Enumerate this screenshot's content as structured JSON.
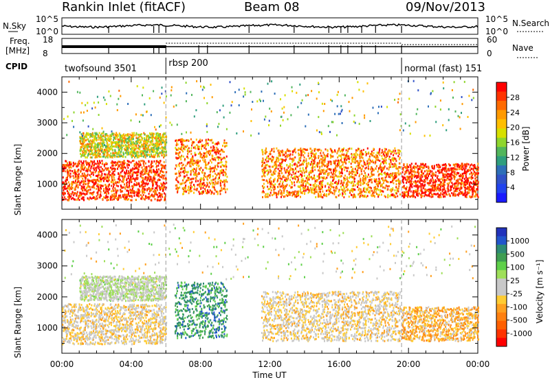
{
  "header": {
    "station": "Rankin Inlet (fitACF)",
    "beam": "Beam 08",
    "date": "09/Nov/2013"
  },
  "noise_panel": {
    "left_label": "N.Sky",
    "right_label": "N.Search",
    "left_top": "10^5",
    "left_bottom": "10^0",
    "right_top": "10^5",
    "right_bottom": "10^0"
  },
  "freq_panel": {
    "left_label_1": "Freq.",
    "left_label_2": "[MHz]",
    "left_top": "18",
    "left_bottom": "8",
    "right_label": "Nave",
    "right_top": "60",
    "right_bottom": "0"
  },
  "cpid_panel": {
    "label": "CPID",
    "segments": [
      {
        "text": "twofsound 3501",
        "start_hour": 0,
        "end_hour": 6.0
      },
      {
        "text": "rbsp 200",
        "start_hour": 6.0,
        "end_hour": 19.6
      },
      {
        "text": "normal (fast) 151",
        "start_hour": 19.6,
        "end_hour": 24
      }
    ]
  },
  "axes": {
    "y_label": "Slant Range [km]",
    "x_label": "Time UT",
    "x_ticks": [
      "00:00",
      "04:00",
      "08:00",
      "12:00",
      "16:00",
      "20:00",
      "00:00"
    ],
    "y_ticks": [
      "1000",
      "2000",
      "3000",
      "4000"
    ]
  },
  "colorbars": {
    "power": {
      "label": "Power [dB]",
      "ticks": [
        "28",
        "24",
        "20",
        "16",
        "12",
        "8",
        "4"
      ],
      "colors": [
        "#ff0000",
        "#ff3300",
        "#ff6a00",
        "#ff9a00",
        "#ffbf00",
        "#d7e000",
        "#8fd62e",
        "#52b65c",
        "#2f9e7e",
        "#2e6fb8",
        "#3152c8",
        "#2244ee",
        "#1a1aff"
      ]
    },
    "velocity": {
      "label": "Velocity [m s⁻¹]",
      "ticks": [
        "1000",
        "500",
        "100",
        "25",
        "-25",
        "-100",
        "-500",
        "-1000"
      ],
      "colors": [
        "#2233bb",
        "#2255cc",
        "#2e8b74",
        "#3f9e52",
        "#5fd04a",
        "#9fdf5a",
        "#c8c8c8",
        "#c8c8c8",
        "#ffcc33",
        "#ffa020",
        "#ff8010",
        "#ff6000",
        "#ff3300",
        "#ff0000"
      ]
    }
  },
  "chart_data": {
    "type": "heatmap",
    "x_range_hours": [
      0,
      24
    ],
    "y_range_km": [
      180,
      4500
    ],
    "mode_change_hours": [
      6.0,
      19.6
    ],
    "panels": [
      {
        "name": "power",
        "units": "dB",
        "range": [
          0,
          30
        ]
      },
      {
        "name": "velocity",
        "units": "m s^-1",
        "range": [
          -1000,
          1000
        ]
      }
    ],
    "scatter_regions_summary": [
      {
        "hours": [
          0.0,
          6.0
        ],
        "range_km": [
          500,
          1800
        ],
        "power_db": 28,
        "velocity_ms": -150
      },
      {
        "hours": [
          1.0,
          6.0
        ],
        "range_km": [
          1900,
          2700
        ],
        "power_db": 18,
        "velocity_ms": 80
      },
      {
        "hours": [
          6.5,
          9.5
        ],
        "range_km": [
          700,
          2500
        ],
        "power_db": 24,
        "velocity_ms": 600
      },
      {
        "hours": [
          11.5,
          19.5
        ],
        "range_km": [
          600,
          2200
        ],
        "power_db": 24,
        "velocity_ms": -150
      },
      {
        "hours": [
          19.6,
          24.0
        ],
        "range_km": [
          600,
          1700
        ],
        "power_db": 28,
        "velocity_ms": -300
      }
    ]
  }
}
